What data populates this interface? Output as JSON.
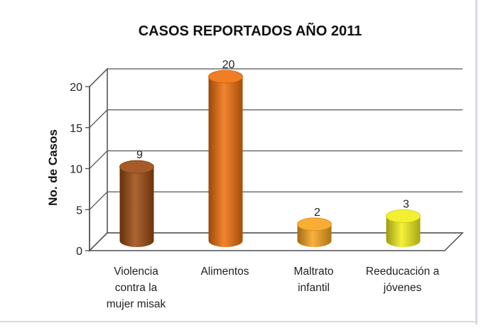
{
  "chart_data": {
    "type": "bar",
    "style": "3d-cylinder",
    "title": "CASOS REPORTADOS AÑO 2011",
    "ylabel": "No. de Casos",
    "xlabel": "",
    "ylim": [
      0,
      20
    ],
    "yticks": [
      0,
      5,
      10,
      15,
      20
    ],
    "grid": true,
    "legend": "none",
    "categories": [
      [
        "Violencia",
        "contra la",
        "mujer misak"
      ],
      [
        "Alimentos"
      ],
      [
        "Maltrato",
        "infantil"
      ],
      [
        "Reeducación a",
        "jóvenes"
      ]
    ],
    "values": [
      9,
      20,
      2,
      3
    ],
    "data_labels": [
      "9",
      "20",
      "2",
      "3"
    ],
    "colors": [
      "#9c4a10",
      "#ef6f0c",
      "#f7a41d",
      "#f2ee1a"
    ]
  }
}
